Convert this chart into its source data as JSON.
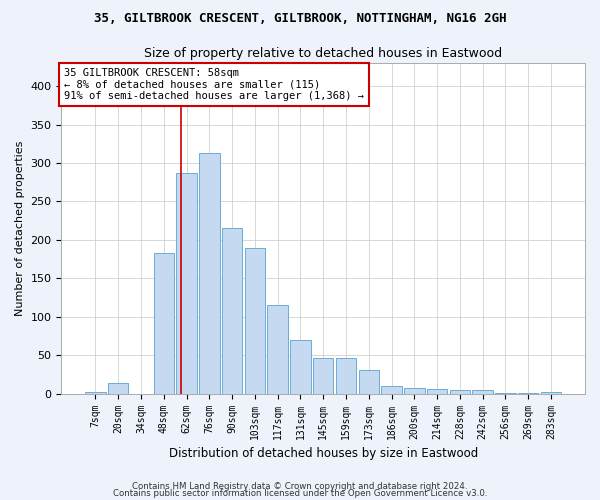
{
  "title": "35, GILTBROOK CRESCENT, GILTBROOK, NOTTINGHAM, NG16 2GH",
  "subtitle": "Size of property relative to detached houses in Eastwood",
  "xlabel": "Distribution of detached houses by size in Eastwood",
  "ylabel": "Number of detached properties",
  "categories": [
    "7sqm",
    "20sqm",
    "34sqm",
    "48sqm",
    "62sqm",
    "76sqm",
    "90sqm",
    "103sqm",
    "117sqm",
    "131sqm",
    "145sqm",
    "159sqm",
    "173sqm",
    "186sqm",
    "200sqm",
    "214sqm",
    "228sqm",
    "242sqm",
    "256sqm",
    "269sqm",
    "283sqm"
  ],
  "values": [
    2,
    14,
    0,
    183,
    287,
    313,
    215,
    190,
    115,
    70,
    46,
    46,
    31,
    10,
    8,
    6,
    5,
    5,
    1,
    1,
    2
  ],
  "bar_color": "#c5d9f0",
  "bar_edge_color": "#6baed6",
  "vline_color": "#cc0000",
  "annotation_text": "35 GILTBROOK CRESCENT: 58sqm\n← 8% of detached houses are smaller (115)\n91% of semi-detached houses are larger (1,368) →",
  "annotation_box_color": "#ffffff",
  "annotation_box_edge": "#cc0000",
  "footer1": "Contains HM Land Registry data © Crown copyright and database right 2024.",
  "footer2": "Contains public sector information licensed under the Open Government Licence v3.0.",
  "bg_color": "#eef2fb",
  "plot_bg_color": "#ffffff",
  "ylim": [
    0,
    430
  ],
  "yticks": [
    0,
    50,
    100,
    150,
    200,
    250,
    300,
    350,
    400
  ],
  "title_fontsize": 9,
  "subtitle_fontsize": 9
}
